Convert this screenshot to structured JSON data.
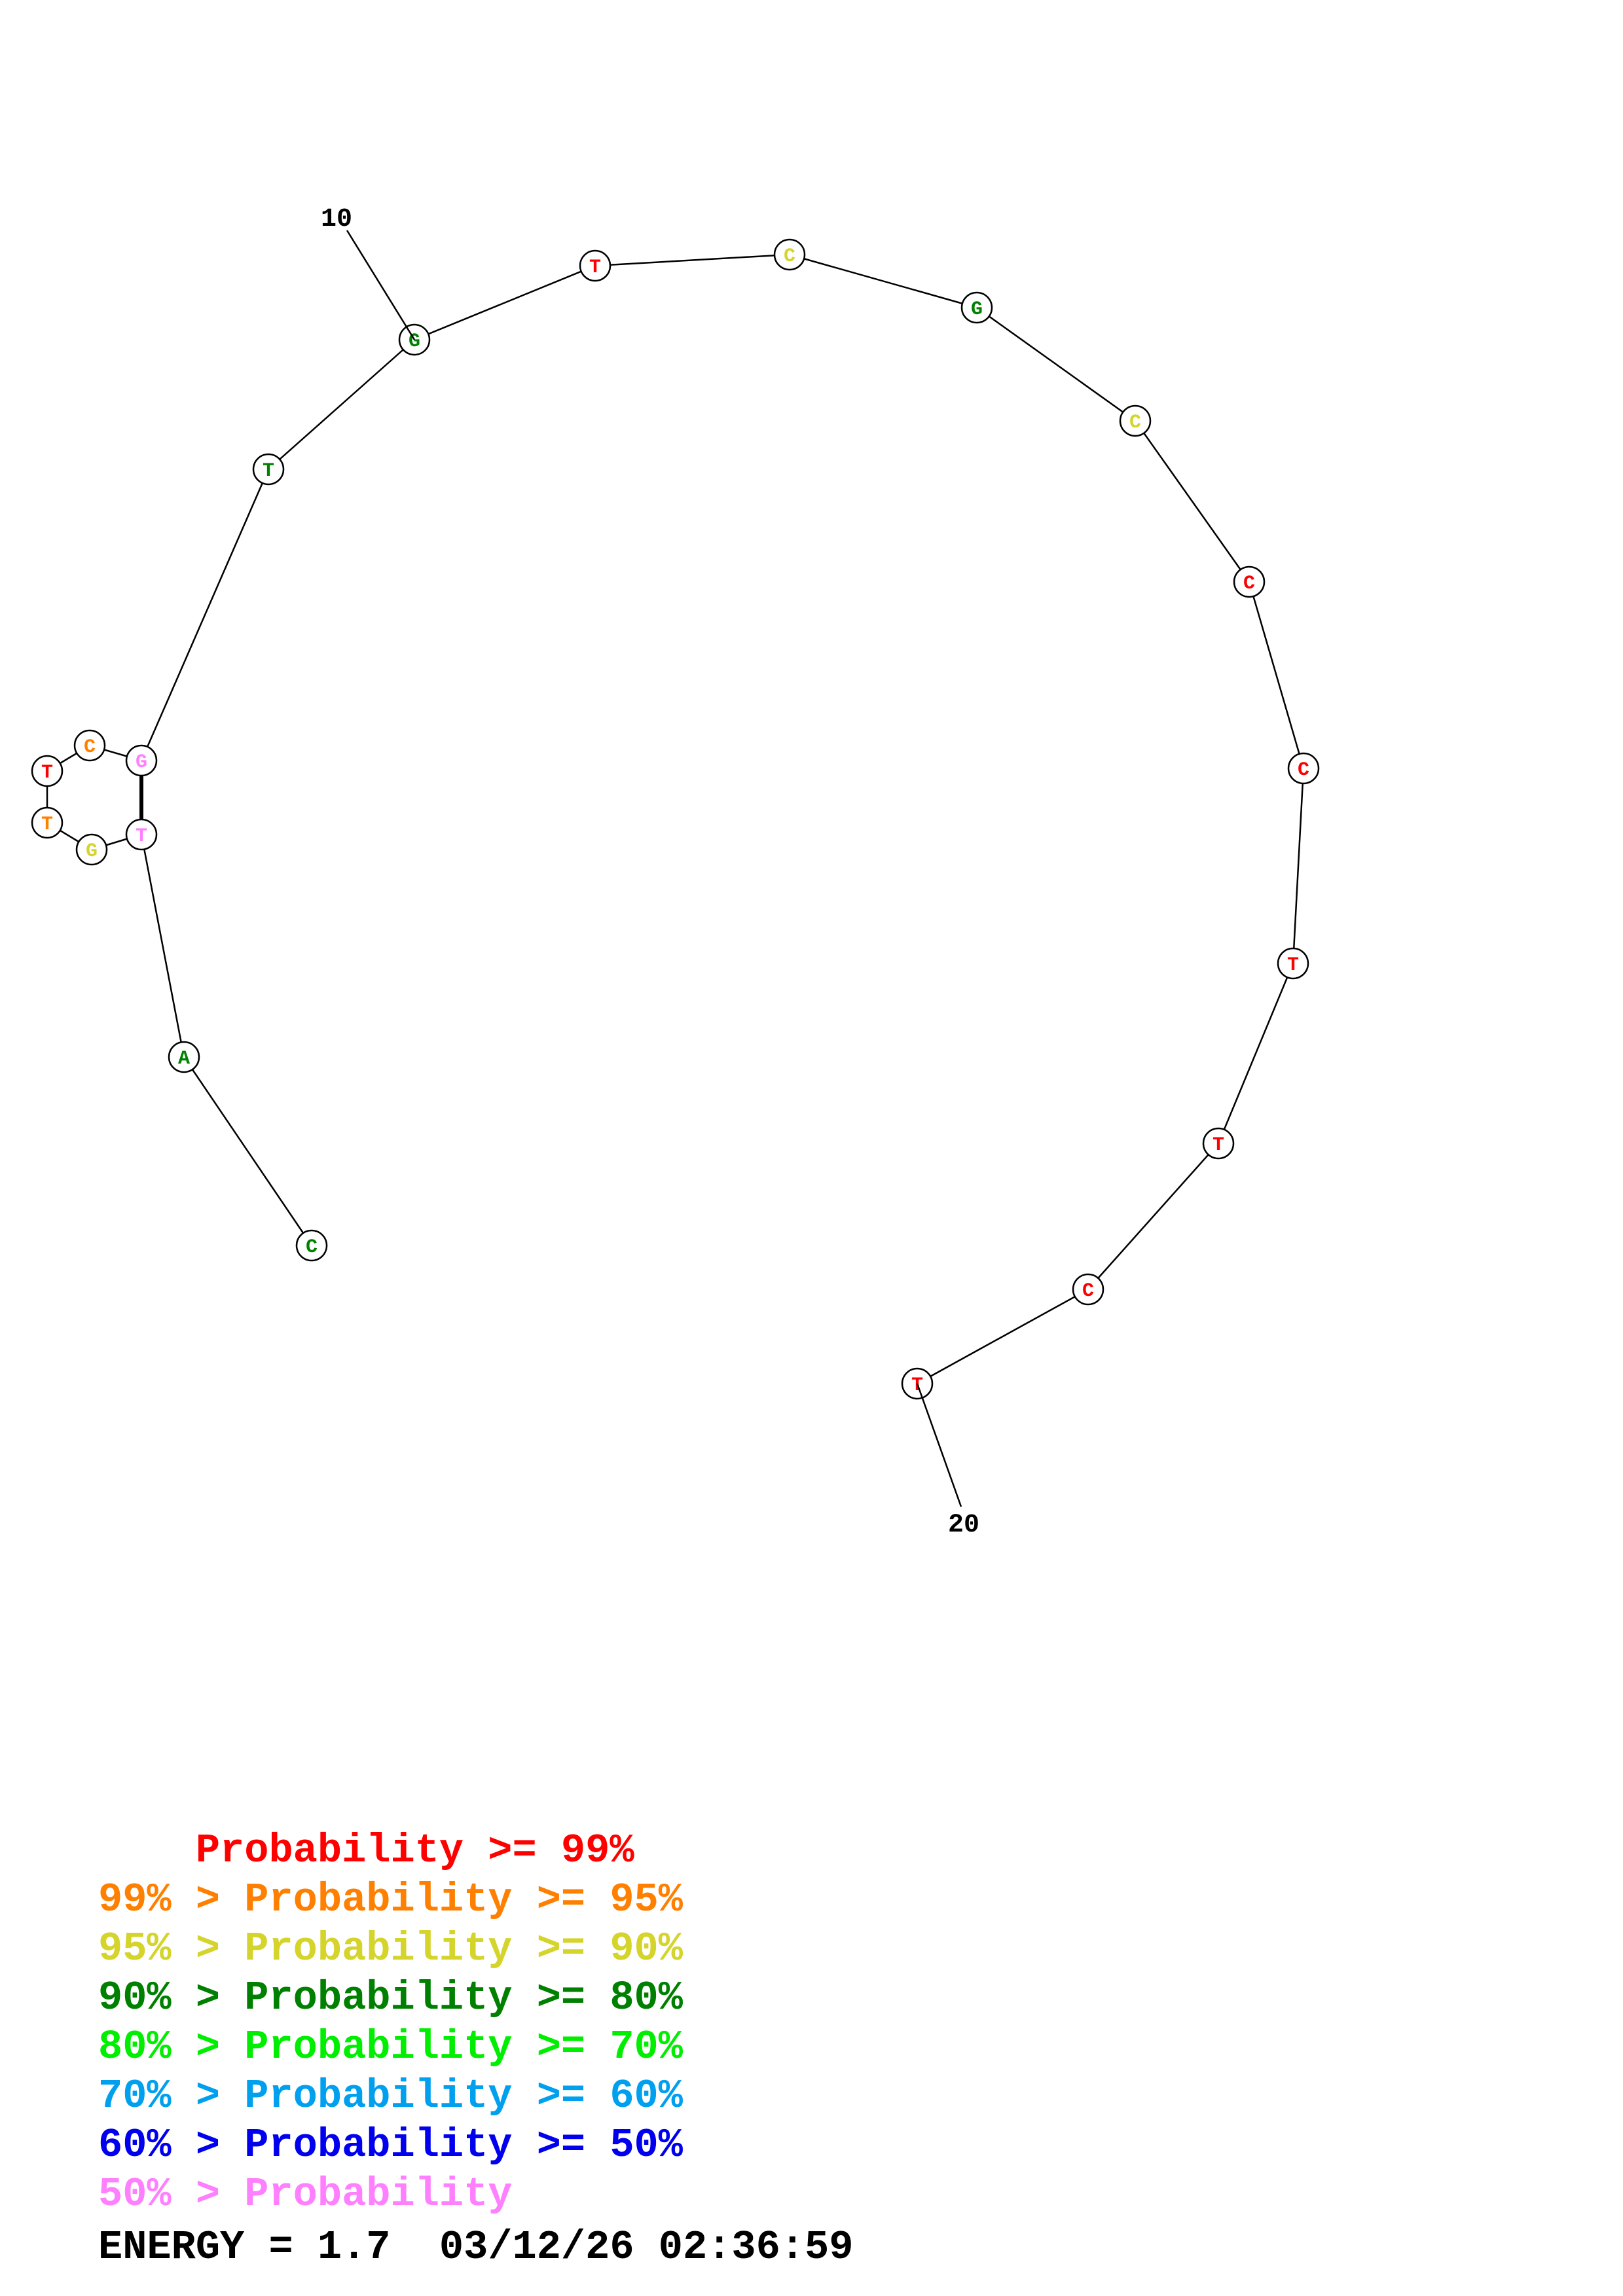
{
  "colors": {
    "p99": "#ff0000",
    "p95": "#ff8000",
    "p90": "#d4d42a",
    "p80": "#008000",
    "p70": "#00ee00",
    "p60": "#00a0ee",
    "p50": "#0000ee",
    "plow": "#ff80ff"
  },
  "sequence": [
    {
      "base": "C",
      "color": "p80"
    },
    {
      "base": "A",
      "color": "p80"
    },
    {
      "base": "T",
      "color": "plow"
    },
    {
      "base": "G",
      "color": "p90"
    },
    {
      "base": "T",
      "color": "p95"
    },
    {
      "base": "T",
      "color": "p99"
    },
    {
      "base": "C",
      "color": "p95"
    },
    {
      "base": "G",
      "color": "plow"
    },
    {
      "base": "T",
      "color": "p80"
    },
    {
      "base": "G",
      "color": "p80"
    },
    {
      "base": "T",
      "color": "p99"
    },
    {
      "base": "C",
      "color": "p90"
    },
    {
      "base": "G",
      "color": "p80"
    },
    {
      "base": "C",
      "color": "p90"
    },
    {
      "base": "C",
      "color": "p99"
    },
    {
      "base": "C",
      "color": "p99"
    },
    {
      "base": "T",
      "color": "p99"
    },
    {
      "base": "T",
      "color": "p99"
    },
    {
      "base": "C",
      "color": "p99"
    },
    {
      "base": "T",
      "color": "p99"
    }
  ],
  "pairs": [
    [
      3,
      8
    ]
  ],
  "index_labels": [
    {
      "text": "10",
      "position": 10
    },
    {
      "text": "20",
      "position": 20
    }
  ],
  "legend": [
    {
      "prefix": "    ",
      "label": "Probability >= 99%",
      "color": "p99"
    },
    {
      "prefix": "99% > ",
      "label": "Probability >= 95%",
      "color": "p95"
    },
    {
      "prefix": "95% > ",
      "label": "Probability >= 90%",
      "color": "p90"
    },
    {
      "prefix": "90% > ",
      "label": "Probability >= 80%",
      "color": "p80"
    },
    {
      "prefix": "80% > ",
      "label": "Probability >= 70%",
      "color": "p70"
    },
    {
      "prefix": "70% > ",
      "label": "Probability >= 60%",
      "color": "p60"
    },
    {
      "prefix": "60% > ",
      "label": "Probability >= 50%",
      "color": "p50"
    },
    {
      "prefix": "50% > ",
      "label": "Probability",
      "color": "plow"
    }
  ],
  "energy": {
    "label": "ENERGY = 1.7",
    "timestamp": "03/12/26 02:36:59"
  }
}
